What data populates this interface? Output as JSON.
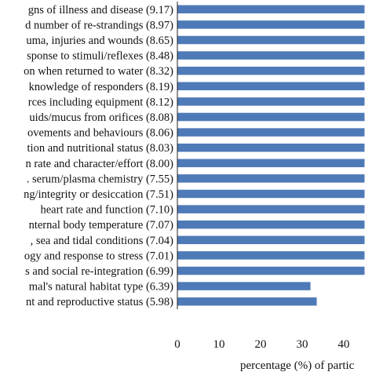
{
  "chart_data": {
    "type": "bar",
    "orientation": "horizontal",
    "categories": [
      "gns of illness and disease (9.17)",
      "d number of re-strandings (8.97)",
      "uma, injuries and wounds (8.65)",
      "sponse to stimuli/reflexes (8.48)",
      "on when returned to water (8.32)",
      "knowledge of responders (8.19)",
      "rces including equipment (8.12)",
      "uids/mucus from orifices (8.08)",
      "ovements and behaviours (8.06)",
      "tion and nutritional status (8.03)",
      "n rate and character/effort (8.00)",
      ". serum/plasma chemistry (7.55)",
      "ng/integrity or desiccation (7.51)",
      "heart rate and function (7.10)",
      "nternal body temperature (7.07)",
      ", sea and tidal conditions (7.04)",
      "ogy and response to stress (7.01)",
      "s and social re-integration (6.99)",
      "mal's natural habitat type (6.39)",
      "nt and reproductive status (5.98)"
    ],
    "values": [
      45,
      45,
      45,
      45,
      45,
      45,
      45,
      45,
      45,
      45,
      45,
      45,
      45,
      45,
      45,
      45,
      45,
      45,
      32,
      33.5
    ],
    "xlabel": "percentage (%) of partic",
    "xticks": [
      0,
      10,
      20,
      30,
      40
    ],
    "xlim": [
      0,
      50
    ],
    "grid": false,
    "bar_color": "#4f7ab8"
  }
}
